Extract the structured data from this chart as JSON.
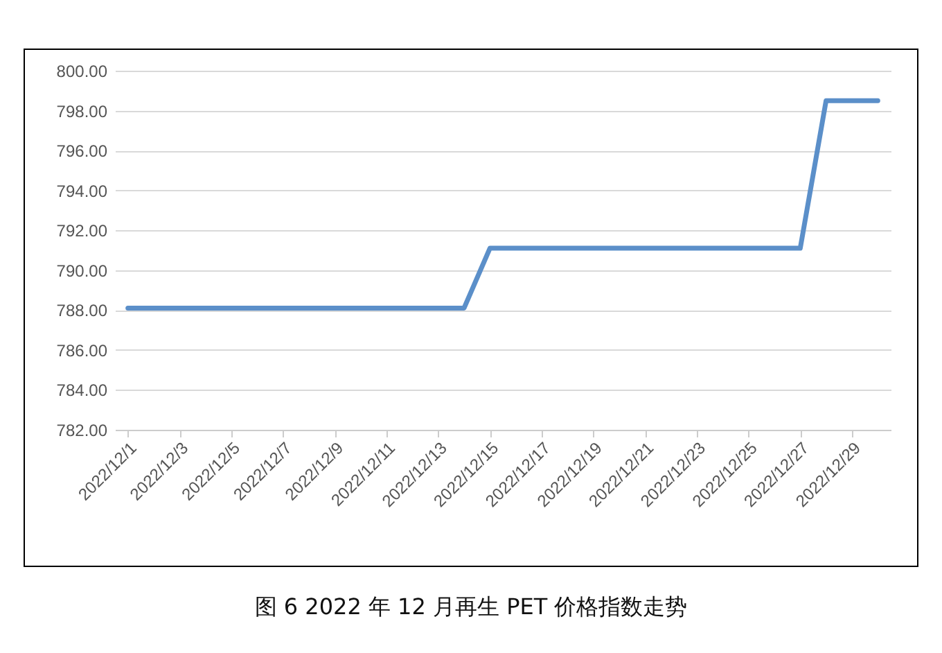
{
  "chart_data": {
    "type": "line",
    "title": "图 6  2022 年 12 月再生 PET 价格指数走势",
    "x": [
      "2022-12-01",
      "2022-12-02",
      "2022-12-03",
      "2022-12-04",
      "2022-12-05",
      "2022-12-06",
      "2022-12-07",
      "2022-12-08",
      "2022-12-09",
      "2022-12-10",
      "2022-12-11",
      "2022-12-12",
      "2022-12-13",
      "2022-12-14",
      "2022-12-15",
      "2022-12-16",
      "2022-12-17",
      "2022-12-18",
      "2022-12-19",
      "2022-12-20",
      "2022-12-21",
      "2022-12-22",
      "2022-12-23",
      "2022-12-24",
      "2022-12-25",
      "2022-12-26",
      "2022-12-27",
      "2022-12-28",
      "2022-12-29",
      "2022-12-30"
    ],
    "xlim": [
      "2022-11-30T12:00",
      "2022-12-30T12:00"
    ],
    "xticks": [
      {
        "value": "2022-12-01",
        "label": "2022/12/1"
      },
      {
        "value": "2022-12-03",
        "label": "2022/12/3"
      },
      {
        "value": "2022-12-05",
        "label": "2022/12/5"
      },
      {
        "value": "2022-12-07",
        "label": "2022/12/7"
      },
      {
        "value": "2022-12-09",
        "label": "2022/12/9"
      },
      {
        "value": "2022-12-11",
        "label": "2022/12/11"
      },
      {
        "value": "2022-12-13",
        "label": "2022/12/13"
      },
      {
        "value": "2022-12-15",
        "label": "2022/12/15"
      },
      {
        "value": "2022-12-17",
        "label": "2022/12/17"
      },
      {
        "value": "2022-12-19",
        "label": "2022/12/19"
      },
      {
        "value": "2022-12-21",
        "label": "2022/12/21"
      },
      {
        "value": "2022-12-23",
        "label": "2022/12/23"
      },
      {
        "value": "2022-12-25",
        "label": "2022/12/25"
      },
      {
        "value": "2022-12-27",
        "label": "2022/12/27"
      },
      {
        "value": "2022-12-29",
        "label": "2022/12/29"
      }
    ],
    "series": [
      {
        "color": "#5b8fc9",
        "values": [
          788.1,
          788.1,
          788.1,
          788.1,
          788.1,
          788.1,
          788.1,
          788.1,
          788.1,
          788.1,
          788.1,
          788.1,
          788.1,
          788.1,
          791.1,
          791.1,
          791.1,
          791.1,
          791.1,
          791.1,
          791.1,
          791.1,
          791.1,
          791.1,
          791.1,
          791.1,
          791.1,
          798.5,
          798.5,
          798.5
        ]
      }
    ],
    "ylim": [
      782,
      800
    ],
    "yticks": [
      {
        "value": 782,
        "label": "782.00"
      },
      {
        "value": 784,
        "label": "784.00"
      },
      {
        "value": 786,
        "label": "786.00"
      },
      {
        "value": 788,
        "label": "788.00"
      },
      {
        "value": 790,
        "label": "790.00"
      },
      {
        "value": 792,
        "label": "792.00"
      },
      {
        "value": 794,
        "label": "794.00"
      },
      {
        "value": 796,
        "label": "796.00"
      },
      {
        "value": 798,
        "label": "798.00"
      },
      {
        "value": 800,
        "label": "800.00"
      }
    ],
    "grid": "y",
    "marker": "none",
    "line_style": "solid"
  }
}
